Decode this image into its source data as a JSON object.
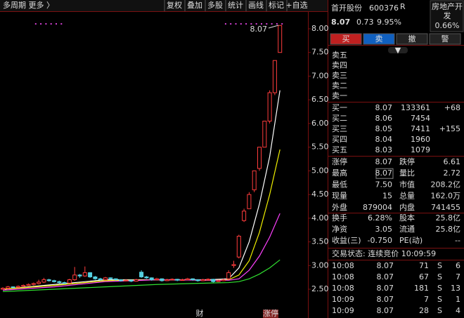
{
  "toolbar": {
    "left": "多周期  更多 〉",
    "buttons": [
      "复权",
      "叠加",
      "多股",
      "统计",
      "画线",
      "标记",
      "+自选"
    ]
  },
  "chart": {
    "type": "candlestick",
    "up_color": "#ff3c3c",
    "down_color": "#54d0e0",
    "ylim": [
      2.25,
      8.3
    ],
    "yticks": [
      {
        "value": 2.5,
        "label": "2.50"
      },
      {
        "value": 3,
        "label": "3.00"
      },
      {
        "value": 3.5,
        "label": "3.50"
      },
      {
        "value": 4,
        "label": "4.00"
      },
      {
        "value": 4.5,
        "label": "4.50"
      },
      {
        "value": 5,
        "label": "5.00"
      },
      {
        "value": 5.5,
        "label": "5.50"
      },
      {
        "value": 6,
        "label": "6.00"
      },
      {
        "value": 6.5,
        "label": "6.50"
      },
      {
        "value": 7,
        "label": "7.00"
      },
      {
        "value": 7.5,
        "label": "7.50"
      },
      {
        "value": 8,
        "label": "8.00"
      }
    ],
    "annotation": "8.07",
    "bottom_marks": [
      "财",
      "涨停"
    ],
    "candles": [
      [
        2.5,
        2.52,
        2.54,
        2.49
      ],
      [
        2.52,
        2.55,
        2.57,
        2.5
      ],
      [
        2.55,
        2.54,
        2.56,
        2.52
      ],
      [
        2.54,
        2.56,
        2.58,
        2.53
      ],
      [
        2.56,
        2.58,
        2.6,
        2.55
      ],
      [
        2.58,
        2.6,
        2.62,
        2.57
      ],
      [
        2.6,
        2.62,
        2.64,
        2.58
      ],
      [
        2.62,
        2.65,
        2.7,
        2.6
      ],
      [
        2.65,
        2.7,
        2.74,
        2.63
      ],
      [
        2.7,
        2.68,
        2.72,
        2.66
      ],
      [
        2.68,
        2.66,
        2.7,
        2.64
      ],
      [
        2.66,
        2.64,
        2.68,
        2.62
      ],
      [
        2.64,
        2.63,
        2.66,
        2.61
      ],
      [
        2.63,
        2.7,
        2.72,
        2.62
      ],
      [
        2.7,
        2.8,
        2.97,
        2.68
      ],
      [
        2.8,
        2.78,
        2.82,
        2.74
      ],
      [
        2.78,
        2.85,
        2.98,
        2.76
      ],
      [
        2.85,
        2.76,
        2.86,
        2.74
      ],
      [
        2.76,
        2.72,
        2.78,
        2.7
      ],
      [
        2.72,
        2.7,
        2.74,
        2.68
      ],
      [
        2.7,
        2.74,
        2.76,
        2.69
      ],
      [
        2.74,
        2.72,
        2.75,
        2.7
      ],
      [
        2.72,
        2.7,
        2.73,
        2.68
      ],
      [
        2.7,
        2.68,
        2.71,
        2.66
      ],
      [
        2.68,
        2.69,
        2.71,
        2.67
      ],
      [
        2.69,
        2.67,
        2.7,
        2.65
      ],
      [
        2.67,
        2.7,
        2.72,
        2.66
      ],
      [
        2.86,
        2.76,
        2.9,
        2.74
      ],
      [
        2.76,
        2.74,
        2.78,
        2.72
      ],
      [
        2.74,
        2.7,
        2.75,
        2.68
      ],
      [
        2.7,
        2.72,
        2.74,
        2.69
      ],
      [
        2.72,
        2.68,
        2.73,
        2.66
      ],
      [
        2.68,
        2.7,
        2.72,
        2.67
      ],
      [
        2.7,
        2.71,
        2.73,
        2.69
      ],
      [
        2.71,
        2.69,
        2.72,
        2.67
      ],
      [
        2.69,
        2.7,
        2.72,
        2.68
      ],
      [
        2.7,
        2.72,
        2.74,
        2.69
      ],
      [
        2.72,
        2.7,
        2.73,
        2.68
      ],
      [
        2.7,
        2.68,
        2.71,
        2.66
      ],
      [
        2.68,
        2.7,
        2.72,
        2.67
      ],
      [
        2.7,
        2.71,
        2.73,
        2.69
      ],
      [
        2.71,
        2.66,
        2.72,
        2.64
      ],
      [
        2.66,
        2.68,
        2.7,
        2.65
      ],
      [
        2.68,
        2.7,
        2.72,
        2.67
      ],
      [
        2.72,
        2.85,
        2.9,
        2.7
      ],
      [
        3.0,
        3.02,
        3.1,
        2.95
      ],
      [
        3.18,
        3.62,
        3.65,
        3.15
      ],
      [
        3.95,
        4.15,
        4.2,
        3.92
      ],
      [
        4.2,
        4.5,
        4.55,
        4.2
      ],
      [
        4.6,
        5.0,
        5.0,
        4.55
      ],
      [
        5.05,
        5.5,
        5.5,
        5.0
      ],
      [
        5.5,
        6.05,
        6.05,
        5.5
      ],
      [
        6.05,
        6.65,
        6.7,
        6.0
      ],
      [
        6.65,
        7.33,
        7.33,
        6.6
      ],
      [
        7.5,
        8.07,
        8.07,
        7.5
      ]
    ],
    "ma": [
      {
        "color": "#ffffff",
        "x": [
          0,
          10,
          20,
          30,
          40,
          44,
          46,
          48,
          50,
          52,
          54
        ],
        "values": [
          2.5,
          2.6,
          2.7,
          2.7,
          2.7,
          2.72,
          2.95,
          3.5,
          4.3,
          5.3,
          6.7
        ]
      },
      {
        "color": "#f0f000",
        "x": [
          0,
          10,
          20,
          30,
          40,
          44,
          46,
          48,
          50,
          52,
          54
        ],
        "values": [
          2.5,
          2.58,
          2.68,
          2.7,
          2.69,
          2.7,
          2.8,
          3.1,
          3.7,
          4.5,
          5.45
        ]
      },
      {
        "color": "#ff40ff",
        "x": [
          0,
          10,
          20,
          30,
          40,
          44,
          46,
          48,
          50,
          52,
          54
        ],
        "values": [
          2.48,
          2.55,
          2.66,
          2.7,
          2.69,
          2.69,
          2.72,
          2.9,
          3.2,
          3.6,
          4.1
        ]
      },
      {
        "color": "#30e030",
        "x": [
          0,
          10,
          20,
          30,
          40,
          44,
          46,
          48,
          50,
          52,
          54
        ],
        "values": [
          2.45,
          2.5,
          2.55,
          2.6,
          2.63,
          2.64,
          2.66,
          2.72,
          2.82,
          2.95,
          3.12
        ]
      }
    ]
  },
  "quote": {
    "name": "首开股份",
    "code": "600376",
    "flag": "R",
    "industry": [
      "房地产开",
      "发"
    ],
    "industry_change": "0.66%",
    "price": "8.07",
    "change": "0.73",
    "pct": "9.95%",
    "actions": [
      "买",
      "卖",
      "撤",
      "警"
    ]
  },
  "sell": [
    [
      "卖五"
    ],
    [
      "卖四"
    ],
    [
      "卖三"
    ],
    [
      "卖二"
    ],
    [
      "卖一"
    ]
  ],
  "buy": [
    [
      "买一",
      "8.07",
      "133361",
      "+68"
    ],
    [
      "买二",
      "8.06",
      "7454",
      ""
    ],
    [
      "买三",
      "8.05",
      "7411",
      "+155"
    ],
    [
      "买四",
      "8.04",
      "1960",
      ""
    ],
    [
      "买五",
      "8.03",
      "1079",
      ""
    ]
  ],
  "stats": [
    {
      "cells": [
        "涨停",
        "8.07",
        "跌停",
        "6.61"
      ],
      "colors": [
        "#ff3c3c",
        "#30e030"
      ]
    },
    {
      "cells": [
        "最高",
        "8.07",
        "量比",
        "2.72"
      ],
      "colors": [
        "#ff3c3c",
        "#ff3c3c"
      ]
    },
    {
      "cells": [
        "最低",
        "7.50",
        "市值",
        "208.2亿"
      ],
      "colors": [
        "#ff3c3c",
        "#dddddd"
      ]
    },
    {
      "cells": [
        "现量",
        "15",
        "总量",
        "162.0万"
      ],
      "colors": [
        "#30e030",
        "#dddddd"
      ]
    },
    {
      "cells": [
        "外盘",
        "879004",
        "内盘",
        "741455"
      ],
      "colors": [
        "#ff3c3c",
        "#30e030"
      ]
    }
  ],
  "finance": [
    [
      "换手",
      "6.28%",
      "股本",
      "25.8亿"
    ],
    [
      "净资",
      "3.05",
      "流通",
      "25.8亿"
    ],
    [
      "收益(三)",
      "-0.750",
      "PE(动)",
      "--"
    ]
  ],
  "status": "交易状态: 连续竞价 10:09:59",
  "trades": [
    [
      "10:08",
      "8.07",
      "71",
      "S",
      "6"
    ],
    [
      "10:08",
      "8.07",
      "67",
      "S",
      "7"
    ],
    [
      "10:08",
      "8.07",
      "181",
      "S",
      "13"
    ],
    [
      "10:09",
      "8.07",
      "7",
      "S",
      "1"
    ],
    [
      "10:09",
      "8.07",
      "28",
      "S",
      "4"
    ]
  ]
}
